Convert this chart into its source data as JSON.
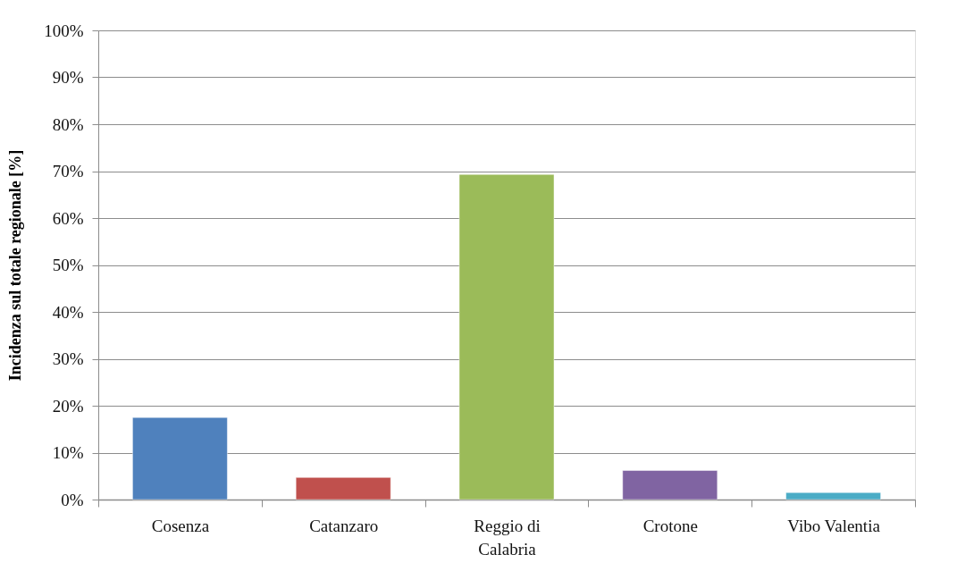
{
  "chart_data": {
    "type": "bar",
    "ylabel": "Incidenza sul totale regionale [%]",
    "categories": [
      "Cosenza",
      "Catanzaro",
      "Reggio di Calabria",
      "Crotone",
      "Vibo Valentia"
    ],
    "values": [
      17.5,
      4.7,
      69.3,
      6.2,
      1.5
    ],
    "colors": [
      "#4f81bd",
      "#c0504d",
      "#9bbb59",
      "#8064a2",
      "#4bacc6"
    ],
    "ylim": [
      0,
      100
    ],
    "yticks": [
      {
        "value": 0,
        "label": "0%"
      },
      {
        "value": 10,
        "label": "10%"
      },
      {
        "value": 20,
        "label": "20%"
      },
      {
        "value": 30,
        "label": "30%"
      },
      {
        "value": 40,
        "label": "40%"
      },
      {
        "value": 50,
        "label": "50%"
      },
      {
        "value": 60,
        "label": "60%"
      },
      {
        "value": 70,
        "label": "70%"
      },
      {
        "value": 80,
        "label": "80%"
      },
      {
        "value": 90,
        "label": "90%"
      },
      {
        "value": 100,
        "label": "100%"
      }
    ],
    "grid": "y"
  }
}
